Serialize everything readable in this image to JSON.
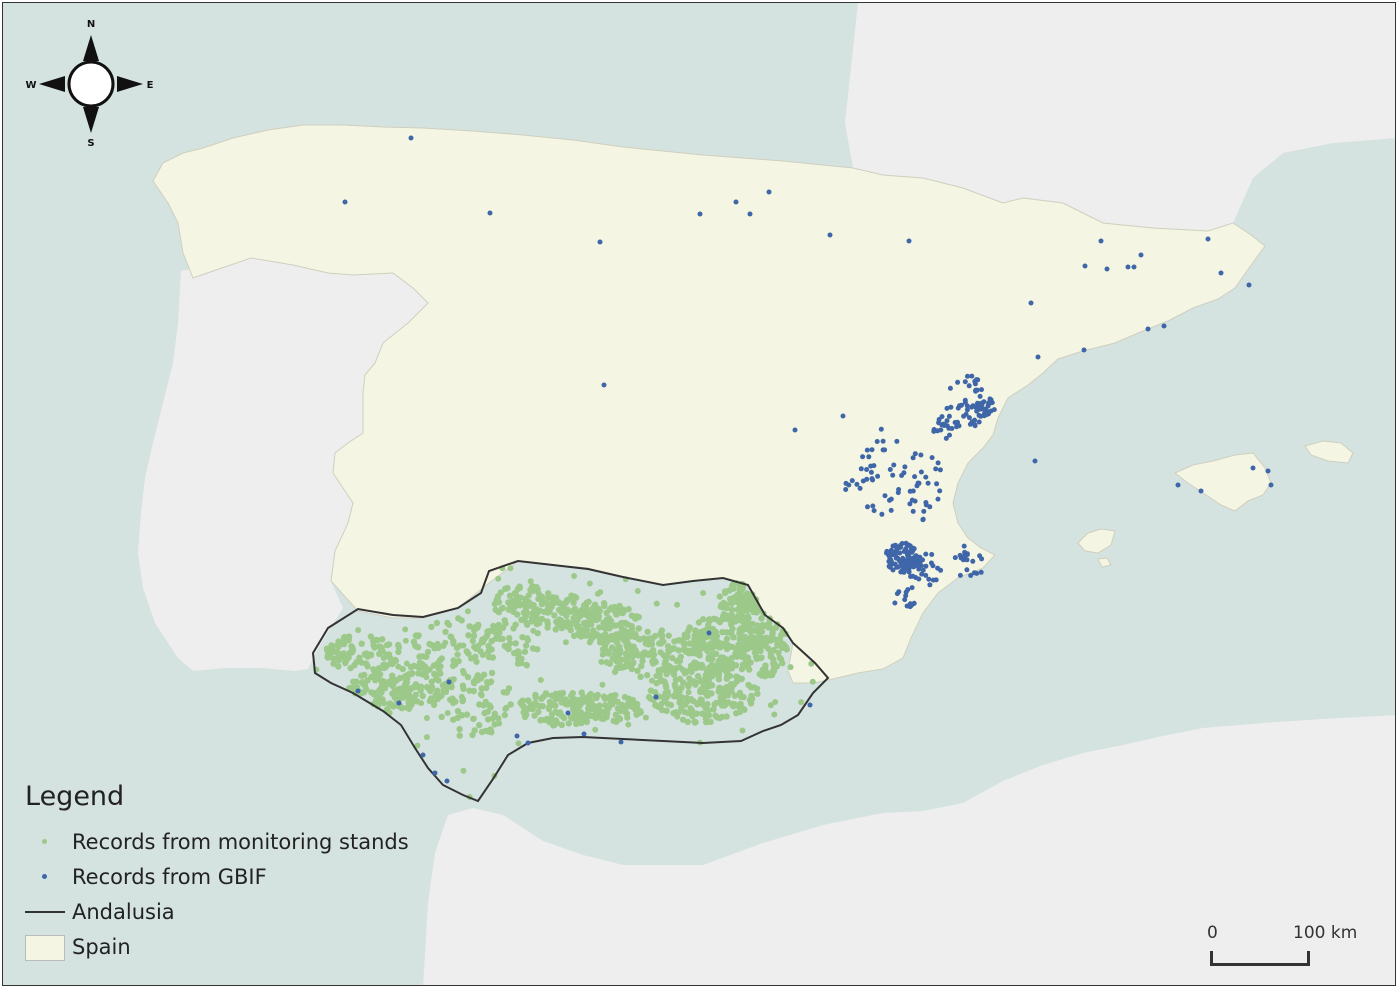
{
  "legend": {
    "title": "Legend",
    "items": [
      {
        "label": "Records from monitoring stands",
        "symbol": "dot",
        "color": "#9cc98a"
      },
      {
        "label": "Records from GBIF",
        "symbol": "dot",
        "color": "#3e66a8"
      },
      {
        "label": "Andalusia",
        "symbol": "line",
        "color": "#333333"
      },
      {
        "label": "Spain",
        "symbol": "box",
        "color": "#f5f5e3"
      }
    ]
  },
  "scale": {
    "start": "0",
    "end": "100 km"
  },
  "compass": {
    "n": "N",
    "s": "S",
    "e": "E",
    "w": "W"
  },
  "colors": {
    "sea": "#d5e3e0",
    "land": "#eeeeee",
    "spain": "#f5f5e3",
    "andalusia_outline": "#333333",
    "monitoring": "#9cc98a",
    "gbif": "#3e66a8"
  }
}
